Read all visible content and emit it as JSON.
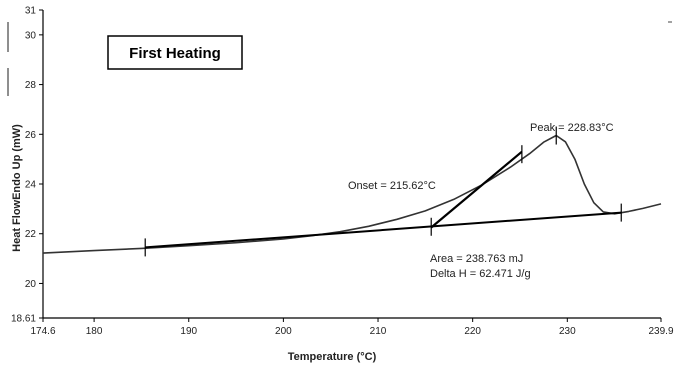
{
  "chart_data": {
    "type": "line",
    "title_box": "First Heating",
    "xlabel": "Temperature (°C)",
    "ylabel": "Heat FlowEndo Up (mW)",
    "xlim": [
      174.6,
      239.9
    ],
    "ylim": [
      18.61,
      31
    ],
    "x_tick_labels": [
      "174.6",
      "180",
      "190",
      "200",
      "210",
      "220",
      "230",
      "239.9"
    ],
    "x_ticks": [
      174.6,
      180,
      190,
      200,
      210,
      220,
      230,
      239.9
    ],
    "y_tick_labels": [
      "18.61",
      "20",
      "22",
      "24",
      "26",
      "28",
      "30",
      "31"
    ],
    "y_ticks": [
      18.61,
      20,
      22,
      24,
      26,
      28,
      30,
      31
    ],
    "series": [
      {
        "values_xy": [
          [
            174.6,
            21.22
          ],
          [
            180,
            21.32
          ],
          [
            185,
            21.41
          ],
          [
            190,
            21.52
          ],
          [
            195,
            21.64
          ],
          [
            200,
            21.79
          ],
          [
            203,
            21.92
          ],
          [
            206,
            22.08
          ],
          [
            209,
            22.3
          ],
          [
            212,
            22.58
          ],
          [
            215,
            22.92
          ],
          [
            218,
            23.38
          ],
          [
            221,
            23.97
          ],
          [
            224,
            24.68
          ],
          [
            226,
            25.22
          ],
          [
            227.5,
            25.68
          ],
          [
            228.83,
            25.95
          ],
          [
            229.8,
            25.7
          ],
          [
            230.8,
            25.0
          ],
          [
            231.8,
            24.0
          ],
          [
            232.8,
            23.25
          ],
          [
            233.8,
            22.88
          ],
          [
            235,
            22.8
          ],
          [
            236.5,
            22.9
          ],
          [
            238,
            23.02
          ],
          [
            239.9,
            23.2
          ]
        ]
      }
    ],
    "baseline": [
      [
        185.4,
        21.45
      ],
      [
        235.7,
        22.85
      ]
    ],
    "tangent": [
      [
        215.62,
        22.25
      ],
      [
        225.2,
        25.3
      ]
    ],
    "markers": [
      [
        185.4,
        21.45
      ],
      [
        215.62,
        22.28
      ],
      [
        225.2,
        25.2
      ],
      [
        228.83,
        25.95
      ],
      [
        235.7,
        22.85
      ]
    ],
    "annotations": {
      "peak": "Peak = 228.83°C",
      "onset": "Onset = 215.62°C",
      "area": "Area = 238.763 mJ",
      "delta_h": "Delta H = 62.471 J/g"
    },
    "grid": false,
    "legend": "none"
  }
}
